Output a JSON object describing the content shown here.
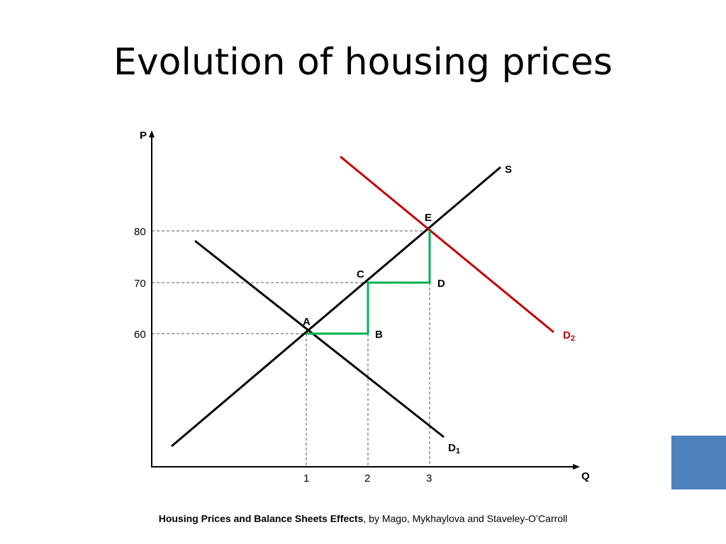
{
  "slide": {
    "title": "Evolution of housing prices",
    "accent_color": "#4F81BD"
  },
  "footer": {
    "title_bold": "Housing Prices and Balance Sheets Effects",
    "byline": ", by Mago, Mykhaylova and Staveley-O’Carroll"
  },
  "diagram": {
    "axis_x_label": "Q",
    "axis_y_label": "P",
    "x_ticks": [
      "1",
      "2",
      "3"
    ],
    "y_ticks": [
      "60",
      "70",
      "80"
    ],
    "supply_label": "S",
    "demand1_label": "D",
    "demand1_sub": "1",
    "demand2_label": "D",
    "demand2_sub": "2",
    "point_labels": {
      "A": "A",
      "B": "B",
      "C": "C",
      "D": "D",
      "E": "E"
    },
    "colors": {
      "axes": "#000000",
      "supply": "#000000",
      "demand1": "#000000",
      "demand2": "#C00000",
      "path": "#00B050",
      "guides": "#555555"
    }
  }
}
